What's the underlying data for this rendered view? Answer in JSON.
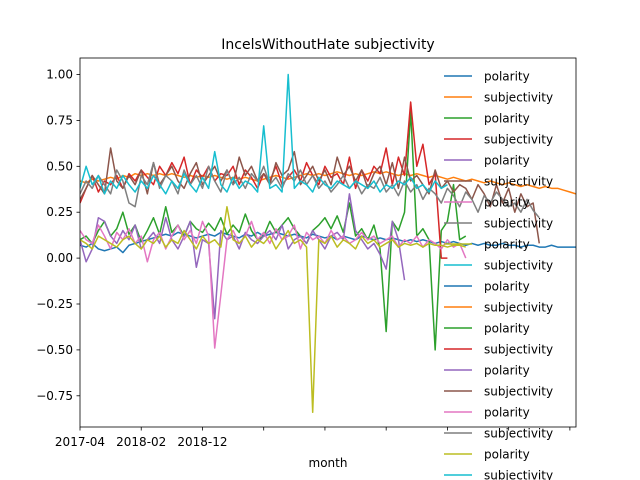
{
  "chart_data": {
    "type": "line",
    "title": "IncelsWithoutHate subjectivity",
    "xlabel": "month",
    "ylabel": "",
    "ylim": [
      -0.92,
      1.09
    ],
    "y_ticks": [
      "1.00",
      "0.75",
      "0.50",
      "0.25",
      "0.00",
      "−0.25",
      "−0.50",
      "−0.75"
    ],
    "y_tick_values": [
      1.0,
      0.75,
      0.5,
      0.25,
      0.0,
      -0.25,
      -0.5,
      -0.75
    ],
    "x_tick_labels": [
      "2017-04",
      "2018-02",
      "2018-12",
      "",
      "",
      "",
      "",
      "",
      ""
    ],
    "x_tick_index": [
      0,
      10,
      20,
      30,
      40,
      50,
      60,
      70,
      80
    ],
    "x_total_points": 82,
    "legend_position": "upper right, overflowing plot",
    "series": [
      {
        "name": "polarity",
        "color": "#1f77b4",
        "start": 0,
        "values": [
          0.07,
          0.06,
          0.08,
          0.05,
          0.04,
          0.05,
          0.06,
          0.03,
          0.07,
          0.08,
          0.09,
          0.1,
          0.11,
          0.12,
          0.13,
          0.12,
          0.14,
          0.13,
          0.12,
          0.11,
          0.12,
          0.13,
          0.12,
          0.14,
          0.13,
          0.12,
          0.11,
          0.13,
          0.12,
          0.14,
          0.12,
          0.13,
          0.14,
          0.13,
          0.12,
          0.13,
          0.12,
          0.11,
          0.13,
          0.12,
          0.11,
          0.12,
          0.1,
          0.12,
          0.11,
          0.1,
          0.12,
          0.11,
          0.1,
          0.11,
          0.1,
          0.11,
          0.1,
          0.09,
          0.1,
          0.09,
          0.1,
          0.09,
          0.08,
          0.09,
          0.08,
          0.09,
          0.08,
          0.07,
          0.08,
          0.07,
          0.08,
          0.07,
          0.07,
          0.08,
          0.07,
          0.07,
          0.06,
          0.07,
          0.07,
          0.06,
          0.06,
          0.07,
          0.06,
          0.06,
          0.06,
          0.06
        ]
      },
      {
        "name": "subjectivity",
        "color": "#ff7f0e",
        "start": 0,
        "values": [
          0.42,
          0.41,
          0.43,
          0.42,
          0.43,
          0.44,
          0.43,
          0.45,
          0.44,
          0.46,
          0.45,
          0.46,
          0.45,
          0.46,
          0.45,
          0.46,
          0.45,
          0.44,
          0.45,
          0.44,
          0.45,
          0.44,
          0.45,
          0.44,
          0.43,
          0.44,
          0.43,
          0.44,
          0.43,
          0.42,
          0.43,
          0.44,
          0.45,
          0.44,
          0.43,
          0.44,
          0.45,
          0.46,
          0.45,
          0.46,
          0.45,
          0.46,
          0.47,
          0.46,
          0.45,
          0.46,
          0.45,
          0.46,
          0.47,
          0.46,
          0.47,
          0.46,
          0.45,
          0.46,
          0.45,
          0.46,
          0.45,
          0.44,
          0.45,
          0.44,
          0.43,
          0.44,
          0.43,
          0.42,
          0.43,
          0.42,
          0.41,
          0.42,
          0.41,
          0.4,
          0.41,
          0.4,
          0.39,
          0.4,
          0.39,
          0.38,
          0.39,
          0.38,
          0.38,
          0.37,
          0.36,
          0.35
        ]
      },
      {
        "name": "polarity",
        "color": "#2ca02c",
        "start": 0,
        "values": [
          0.1,
          0.12,
          0.08,
          0.15,
          0.2,
          0.12,
          0.16,
          0.25,
          0.13,
          0.18,
          0.09,
          0.15,
          0.22,
          0.13,
          0.28,
          0.14,
          0.18,
          0.12,
          0.2,
          0.16,
          0.14,
          0.19,
          0.15,
          0.22,
          0.13,
          0.18,
          0.14,
          0.24,
          0.15,
          0.1,
          0.12,
          0.2,
          0.14,
          0.18,
          0.22,
          0.16,
          0.12,
          0.08,
          0.15,
          0.18,
          0.22,
          0.16,
          0.23,
          0.14,
          0.3,
          0.12,
          0.16,
          0.1,
          0.18,
          0.05,
          -0.4,
          0.2,
          0.15,
          0.25,
          0.8,
          0.12,
          0.16,
          0.1,
          -0.5,
          0.15,
          0.2,
          0.4,
          0.1,
          0.12
        ]
      },
      {
        "name": "subjectivity",
        "color": "#d62728",
        "start": 0,
        "values": [
          0.3,
          0.38,
          0.45,
          0.36,
          0.42,
          0.4,
          0.45,
          0.38,
          0.46,
          0.42,
          0.48,
          0.44,
          0.4,
          0.5,
          0.45,
          0.52,
          0.46,
          0.55,
          0.4,
          0.48,
          0.44,
          0.5,
          0.42,
          0.46,
          0.45,
          0.5,
          0.4,
          0.48,
          0.44,
          0.38,
          0.46,
          0.42,
          0.5,
          0.4,
          0.44,
          0.48,
          0.42,
          0.52,
          0.45,
          0.4,
          0.5,
          0.44,
          0.46,
          0.4,
          0.55,
          0.38,
          0.48,
          0.42,
          0.5,
          0.46,
          0.6,
          0.4,
          0.55,
          0.45,
          0.85,
          0.5,
          0.62,
          0.4,
          0.46,
          0.0,
          0.0
        ]
      },
      {
        "name": "polarity",
        "color": "#9467bd",
        "start": 0,
        "values": [
          0.1,
          -0.02,
          0.05,
          0.22,
          0.2,
          0.12,
          0.08,
          0.15,
          0.1,
          0.18,
          0.05,
          0.1,
          0.14,
          0.08,
          0.22,
          0.1,
          0.05,
          0.12,
          0.2,
          -0.05,
          0.1,
          0.08,
          -0.33,
          0.15,
          0.1,
          0.12,
          0.05,
          0.14,
          0.1,
          0.08,
          0.12,
          0.15,
          0.1,
          0.18,
          0.05,
          0.1,
          0.12,
          0.08,
          0.15,
          0.1,
          0.05,
          0.12,
          0.14,
          0.1,
          0.35,
          0.15,
          0.1,
          0.05,
          0.08,
          0.02,
          -0.06,
          0.2,
          0.1,
          -0.12
        ]
      },
      {
        "name": "subjectivity",
        "color": "#8c564b",
        "start": 0,
        "values": [
          0.32,
          0.38,
          0.45,
          0.4,
          0.35,
          0.6,
          0.42,
          0.38,
          0.45,
          0.4,
          0.48,
          0.35,
          0.52,
          0.4,
          0.45,
          0.5,
          0.42,
          0.38,
          0.46,
          0.52,
          0.4,
          0.45,
          0.5,
          0.42,
          0.48,
          0.4,
          0.55,
          0.45,
          0.5,
          0.42,
          0.46,
          0.4,
          0.52,
          0.45,
          0.48,
          0.58,
          0.4,
          0.45,
          0.5,
          0.42,
          0.48,
          0.4,
          0.55,
          0.45,
          0.5,
          0.42,
          0.48,
          0.38,
          0.46,
          0.5,
          0.4,
          0.52,
          0.38,
          0.55,
          0.42,
          0.45,
          0.4,
          0.35,
          0.48,
          0.38,
          0.42,
          0.36,
          0.4,
          0.38,
          0.32,
          0.4,
          0.35,
          0.28,
          0.4,
          0.3,
          0.38,
          0.25,
          0.35,
          0.28,
          0.3,
          0.08
        ]
      },
      {
        "name": "polarity",
        "color": "#e377c2",
        "start": 0,
        "values": [
          0.15,
          0.1,
          0.08,
          0.18,
          0.12,
          0.05,
          0.14,
          0.1,
          0.16,
          0.08,
          0.12,
          -0.02,
          0.1,
          0.14,
          0.05,
          0.12,
          0.18,
          0.1,
          0.15,
          0.08,
          0.2,
          0.12,
          -0.49,
          -0.2,
          0.1,
          0.15,
          0.08,
          0.12,
          0.2,
          0.1,
          0.14,
          0.08,
          0.16,
          0.1,
          0.12,
          0.18,
          0.05,
          0.14,
          0.1,
          0.12,
          0.08,
          0.15,
          0.1,
          0.12,
          0.08,
          0.1,
          0.14,
          0.1,
          0.12,
          0.08,
          0.1,
          0.12,
          0.06,
          0.1,
          0.08,
          0.12,
          0.06,
          0.1,
          0.08,
          0.05,
          0.1,
          0.06,
          0.08,
          0.0
        ]
      },
      {
        "name": "subjectivity",
        "color": "#7f7f7f",
        "start": 0,
        "values": [
          0.35,
          0.42,
          0.38,
          0.45,
          0.4,
          0.35,
          0.48,
          0.42,
          0.3,
          0.28,
          0.45,
          0.4,
          0.52,
          0.38,
          0.45,
          0.42,
          0.35,
          0.48,
          0.4,
          0.45,
          0.38,
          0.5,
          0.42,
          0.36,
          0.48,
          0.4,
          0.44,
          0.38,
          0.46,
          0.42,
          0.5,
          0.4,
          0.44,
          0.38,
          0.46,
          0.42,
          0.48,
          0.4,
          0.45,
          0.38,
          0.42,
          0.36,
          0.4,
          0.45,
          0.38,
          0.42,
          0.35,
          0.4,
          0.38,
          0.44,
          0.36,
          0.4,
          0.34,
          0.42,
          0.36,
          0.4,
          0.32,
          0.38,
          0.35,
          0.3,
          0.38,
          0.34,
          0.28,
          0.36,
          0.32,
          0.25,
          0.34,
          0.3,
          0.36,
          0.32,
          0.28,
          0.3,
          0.25,
          0.32,
          0.26,
          0.22
        ]
      },
      {
        "name": "polarity",
        "color": "#bcbd22",
        "start": 0,
        "values": [
          0.1,
          0.08,
          0.05,
          0.12,
          0.1,
          0.08,
          0.06,
          0.1,
          0.12,
          0.08,
          0.05,
          0.1,
          0.08,
          0.12,
          0.06,
          0.1,
          0.08,
          0.15,
          0.1,
          0.05,
          0.12,
          0.08,
          0.1,
          0.06,
          0.28,
          0.1,
          0.08,
          0.12,
          0.06,
          0.1,
          0.08,
          0.12,
          0.05,
          0.1,
          0.15,
          0.08,
          0.1,
          0.06,
          -0.84,
          0.1,
          0.08,
          0.12,
          0.06,
          0.1,
          0.08,
          0.05,
          0.12,
          0.08,
          0.1,
          0.06,
          0.08,
          0.1,
          0.06,
          0.08,
          0.07,
          0.08,
          0.06,
          0.08,
          0.07,
          0.07,
          0.06,
          0.07,
          0.07,
          0.06
        ]
      },
      {
        "name": "subjectivity",
        "color": "#17becf",
        "start": 0,
        "values": [
          0.38,
          0.5,
          0.4,
          0.45,
          0.35,
          0.42,
          0.38,
          0.45,
          0.4,
          0.36,
          0.42,
          0.38,
          0.45,
          0.4,
          0.35,
          0.42,
          0.38,
          0.46,
          0.4,
          0.36,
          0.44,
          0.38,
          0.58,
          0.4,
          0.36,
          0.44,
          0.38,
          0.42,
          0.4,
          0.36,
          0.72,
          0.38,
          0.4,
          0.36,
          1.0,
          0.38,
          0.42,
          0.4,
          0.36,
          0.44,
          0.4,
          0.38,
          0.42,
          0.4,
          0.38,
          0.42,
          0.4,
          0.38,
          0.42,
          0.36,
          0.4,
          0.38,
          0.42,
          0.4,
          0.44,
          0.38,
          0.4,
          0.36,
          0.42,
          0.38,
          0.4
        ]
      }
    ],
    "legend": [
      "polarity",
      "subjectivity",
      "polarity",
      "subjectivity",
      "polarity",
      "subjectivity",
      "polarity",
      "subjectivity",
      "polarity",
      "subjectivity",
      "polarity",
      "subjectivity",
      "polarity",
      "subjectivity",
      "polarity",
      "subjectivity",
      "polarity",
      "subjectivity",
      "polarity",
      "subjectivity"
    ],
    "legend_colors": [
      "#1f77b4",
      "#ff7f0e",
      "#2ca02c",
      "#d62728",
      "#9467bd",
      "#8c564b",
      "#e377c2",
      "#7f7f7f",
      "#bcbd22",
      "#17becf",
      "#1f77b4",
      "#ff7f0e",
      "#2ca02c",
      "#d62728",
      "#9467bd",
      "#8c564b",
      "#e377c2",
      "#7f7f7f",
      "#bcbd22",
      "#17becf"
    ]
  }
}
